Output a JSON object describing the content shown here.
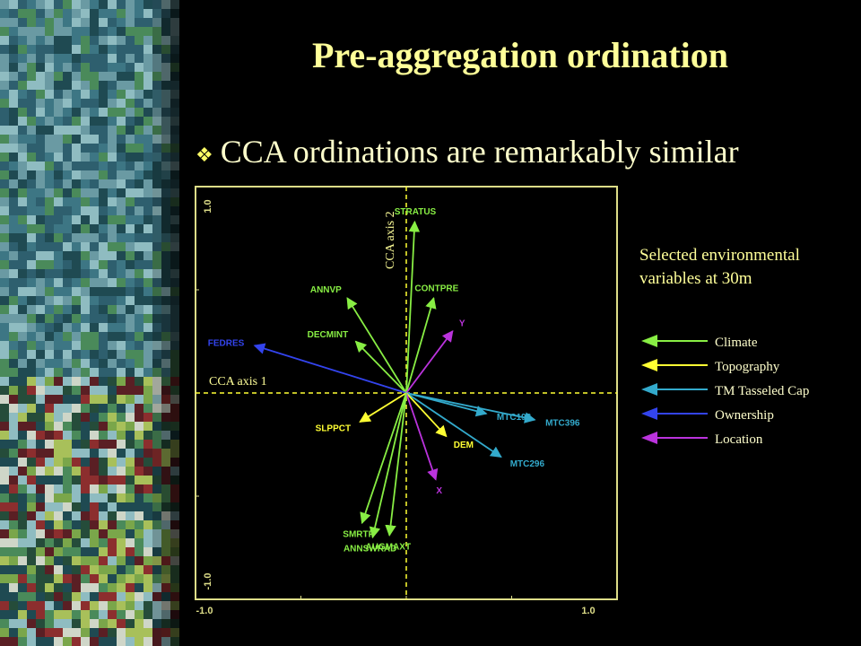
{
  "title": "Pre-aggregation ordination",
  "bullet": "CCA ordinations are remarkably similar",
  "legend_title_line1": "Selected environmental",
  "legend_title_line2": "variables at 30m",
  "colors": {
    "climate": "#88ee44",
    "topography": "#ffff33",
    "tasseled": "#33aacc",
    "ownership": "#3344ee",
    "location": "#bb33dd",
    "frame": "#dddd88",
    "title": "#ffff99"
  },
  "legend": [
    {
      "name": "Climate",
      "color": "#88ee44"
    },
    {
      "name": "Topography",
      "color": "#ffff33"
    },
    {
      "name": "TM Tasseled Cap",
      "color": "#33aacc"
    },
    {
      "name": "Ownership",
      "color": "#3344ee"
    },
    {
      "name": "Location",
      "color": "#bb33dd"
    }
  ],
  "chart_data": {
    "type": "scatter",
    "subtype": "biplot-vectors",
    "xlabel": "CCA axis 1",
    "ylabel": "CCA axis 2",
    "xlim": [
      -1.0,
      1.0
    ],
    "ylim": [
      -1.0,
      1.0
    ],
    "x_tick_labels": [
      "-1.0",
      "1.0"
    ],
    "y_tick_labels": [
      "1.0",
      "-1.0"
    ],
    "vectors": [
      {
        "name": "STRATUS",
        "x": 0.04,
        "y": 0.83,
        "group": "Climate"
      },
      {
        "name": "CONTPRE",
        "x": 0.13,
        "y": 0.46,
        "group": "Climate"
      },
      {
        "name": "ANNVP",
        "x": -0.28,
        "y": 0.46,
        "group": "Climate"
      },
      {
        "name": "DECMINT",
        "x": -0.24,
        "y": 0.25,
        "group": "Climate"
      },
      {
        "name": "FEDRES",
        "x": -0.72,
        "y": 0.23,
        "group": "Ownership"
      },
      {
        "name": "Y",
        "x": 0.22,
        "y": 0.3,
        "group": "Location"
      },
      {
        "name": "MTC196",
        "x": 0.38,
        "y": -0.1,
        "group": "TM Tasseled Cap"
      },
      {
        "name": "MTC396",
        "x": 0.61,
        "y": -0.13,
        "group": "TM Tasseled Cap"
      },
      {
        "name": "MTC296",
        "x": 0.45,
        "y": -0.31,
        "group": "TM Tasseled Cap"
      },
      {
        "name": "DEM",
        "x": 0.19,
        "y": -0.21,
        "group": "Topography"
      },
      {
        "name": "X",
        "x": 0.14,
        "y": -0.42,
        "group": "Location"
      },
      {
        "name": "SLPPCT",
        "x": -0.22,
        "y": -0.14,
        "group": "Topography"
      },
      {
        "name": "SMRTP",
        "x": -0.21,
        "y": -0.63,
        "group": "Climate"
      },
      {
        "name": "ANNSWRAD",
        "x": -0.16,
        "y": -0.7,
        "group": "Climate"
      },
      {
        "name": "AUGMAXT",
        "x": -0.08,
        "y": -0.69,
        "group": "Climate"
      }
    ]
  }
}
